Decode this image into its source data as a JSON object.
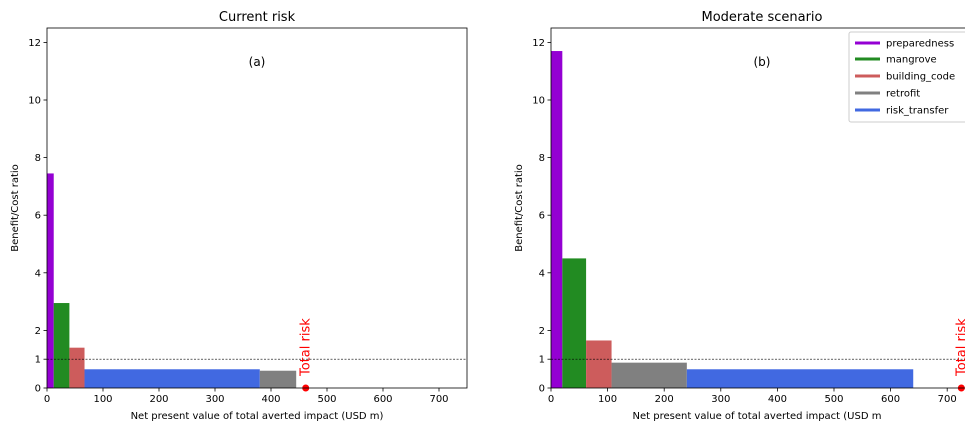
{
  "colors": {
    "preparedness": "#9400d3",
    "mangrove": "#228b22",
    "building_code": "#cd5c5c",
    "retrofit": "#808080",
    "risk_transfer": "#4169e1",
    "total_risk": "#ff0000"
  },
  "legend": {
    "placement": "upper-right",
    "items": [
      "preparedness",
      "mangrove",
      "building_code",
      "retrofit",
      "risk_transfer"
    ]
  },
  "chart_data": [
    {
      "type": "bar",
      "title": "Current risk",
      "panel_label": "(a)",
      "xlabel": "Net present value of total averted impact (USD m)",
      "ylabel": "Benefit/Cost ratio",
      "xlim": [
        0,
        750
      ],
      "ylim": [
        0,
        12.5
      ],
      "xticks": [
        0,
        100,
        200,
        300,
        400,
        500,
        600,
        700
      ],
      "yticks": [
        0,
        1,
        2,
        4,
        6,
        8,
        10,
        12
      ],
      "reference_line": 1,
      "total_risk": {
        "label": "Total risk",
        "x": 462
      },
      "bars": [
        {
          "measure": "preparedness",
          "x_start": 0,
          "x_end": 12,
          "ratio": 7.45
        },
        {
          "measure": "mangrove",
          "x_start": 12,
          "x_end": 40,
          "ratio": 2.95
        },
        {
          "measure": "building_code",
          "x_start": 40,
          "x_end": 67,
          "ratio": 1.4
        },
        {
          "measure": "risk_transfer",
          "x_start": 67,
          "x_end": 380,
          "ratio": 0.65
        },
        {
          "measure": "retrofit",
          "x_start": 380,
          "x_end": 445,
          "ratio": 0.6
        }
      ]
    },
    {
      "type": "bar",
      "title": "Moderate scenario",
      "panel_label": "(b)",
      "xlabel": "Net present value of total averted impact (USD m",
      "ylabel": "Benefit/Cost ratio",
      "xlim": [
        0,
        735
      ],
      "ylim": [
        0,
        12.5
      ],
      "xticks": [
        0,
        100,
        200,
        300,
        400,
        500,
        600,
        700
      ],
      "yticks": [
        0,
        1,
        2,
        4,
        6,
        8,
        10,
        12
      ],
      "reference_line": 1,
      "total_risk": {
        "label": "Total risk",
        "x": 725
      },
      "bars": [
        {
          "measure": "preparedness",
          "x_start": 0,
          "x_end": 20,
          "ratio": 11.7
        },
        {
          "measure": "mangrove",
          "x_start": 20,
          "x_end": 62,
          "ratio": 4.5
        },
        {
          "measure": "building_code",
          "x_start": 62,
          "x_end": 107,
          "ratio": 1.65
        },
        {
          "measure": "retrofit",
          "x_start": 107,
          "x_end": 240,
          "ratio": 0.88
        },
        {
          "measure": "risk_transfer",
          "x_start": 240,
          "x_end": 640,
          "ratio": 0.65
        }
      ]
    }
  ]
}
